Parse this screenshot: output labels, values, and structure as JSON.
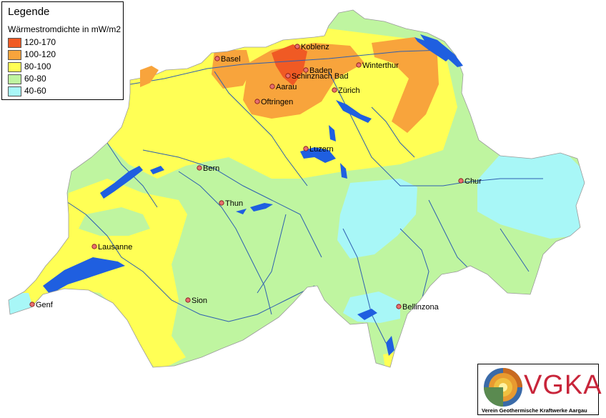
{
  "legend": {
    "title": "Legende",
    "subtitle": "Wärmestromdichte in mW/m2",
    "classes": [
      {
        "label": "120-170",
        "color": "#f05a24"
      },
      {
        "label": "100-120",
        "color": "#f8a43c"
      },
      {
        "label": "80-100",
        "color": "#ffff55"
      },
      {
        "label": "60-80",
        "color": "#bff5a0"
      },
      {
        "label": "40-60",
        "color": "#a8f7f7"
      }
    ]
  },
  "cities": [
    {
      "name": "Koblenz"
    },
    {
      "name": "Basel"
    },
    {
      "name": "Baden"
    },
    {
      "name": "Schinznach Bad"
    },
    {
      "name": "Winterthur"
    },
    {
      "name": "Aarau"
    },
    {
      "name": "Zürich"
    },
    {
      "name": "Oftringen"
    },
    {
      "name": "Luzern"
    },
    {
      "name": "Bern"
    },
    {
      "name": "Chur"
    },
    {
      "name": "Thun"
    },
    {
      "name": "Lausanne"
    },
    {
      "name": "Sion"
    },
    {
      "name": "Genf"
    },
    {
      "name": "Bellinzona"
    }
  ],
  "colors": {
    "water": "#1f5fe0",
    "river": "#2e5fb0",
    "city_marker": "#e87070"
  },
  "logo": {
    "name": "VGKA",
    "caption": "Verein Geothermische Kraftwerke Aargau"
  }
}
